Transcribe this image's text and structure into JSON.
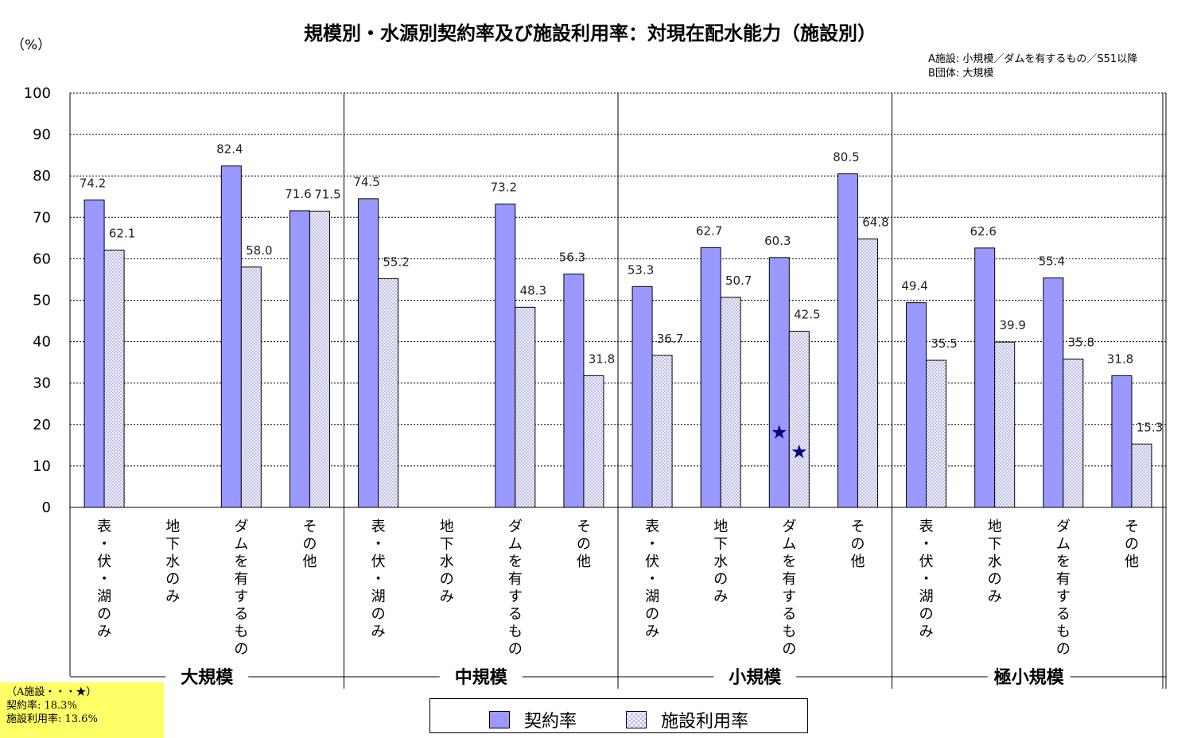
{
  "title": "規模別・水源別契約率及び施設利用率：対現在配水能力（施設別）",
  "unit_label": "（%）",
  "notes": [
    "A施設: 小規模／ダムを有するもの／S51以降",
    "B団体: 大規模"
  ],
  "star_note": {
    "heading": "（A施設・・・★）",
    "contract": "契約率: 18.3%",
    "usage": "施設利用率: 13.6%"
  },
  "colors": {
    "contract": "#9999ff",
    "usage_hatch": "#b3b3e6",
    "star": "#000080"
  },
  "chart_data": {
    "type": "bar",
    "title": "規模別・水源別契約率及び施設利用率：対現在配水能力（施設別）",
    "ylabel": "（%）",
    "ylim": [
      0,
      100
    ],
    "yticks": [
      0,
      10,
      20,
      30,
      40,
      50,
      60,
      70,
      80,
      90,
      100
    ],
    "grid": true,
    "legend": "bottom-center",
    "groups": [
      {
        "name": "大規模",
        "categories": [
          "表・伏・湖のみ",
          "地下水のみ",
          "ダムを有するもの",
          "その他"
        ],
        "series": {
          "契約率": [
            74.2,
            null,
            82.4,
            71.6
          ],
          "施設利用率": [
            62.1,
            null,
            58.0,
            71.5
          ]
        }
      },
      {
        "name": "中規模",
        "categories": [
          "表・伏・湖のみ",
          "地下水のみ",
          "ダムを有するもの",
          "その他"
        ],
        "series": {
          "契約率": [
            74.5,
            null,
            73.2,
            56.3
          ],
          "施設利用率": [
            55.2,
            null,
            48.3,
            31.8
          ]
        }
      },
      {
        "name": "小規模",
        "categories": [
          "表・伏・湖のみ",
          "地下水のみ",
          "ダムを有するもの",
          "その他"
        ],
        "series": {
          "契約率": [
            53.3,
            62.7,
            60.3,
            80.5
          ],
          "施設利用率": [
            36.7,
            50.7,
            42.5,
            64.8
          ]
        }
      },
      {
        "name": "極小規模",
        "categories": [
          "表・伏・湖のみ",
          "地下水のみ",
          "ダムを有するもの",
          "その他"
        ],
        "series": {
          "契約率": [
            49.4,
            62.6,
            55.4,
            31.8
          ],
          "施設利用率": [
            35.5,
            39.9,
            35.8,
            15.3
          ]
        }
      }
    ],
    "series_names": [
      "契約率",
      "施設利用率"
    ],
    "markers": [
      {
        "group": "小規模",
        "category": "ダムを有するもの",
        "series": "契約率",
        "value": 18.3,
        "symbol": "★"
      },
      {
        "group": "小規模",
        "category": "ダムを有するもの",
        "series": "施設利用率",
        "value": 13.6,
        "symbol": "★"
      }
    ]
  }
}
